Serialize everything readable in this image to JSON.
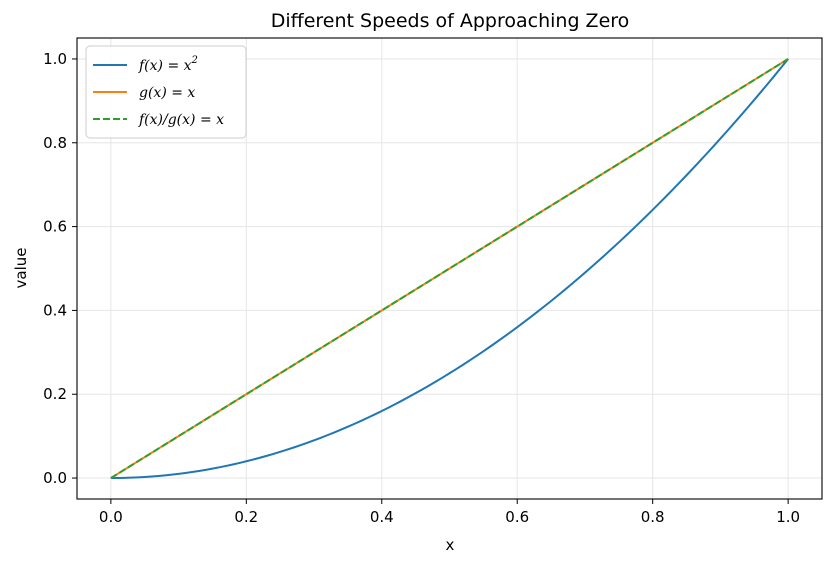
{
  "chart_data": {
    "type": "line",
    "title": "Different Speeds of Approaching Zero",
    "xlabel": "x",
    "ylabel": "value",
    "xlim": [
      -0.05,
      1.05
    ],
    "ylim": [
      -0.05,
      1.05
    ],
    "xticks": [
      0.0,
      0.2,
      0.4,
      0.6,
      0.8,
      1.0
    ],
    "xtick_labels": [
      "0.0",
      "0.2",
      "0.4",
      "0.6",
      "0.8",
      "1.0"
    ],
    "yticks": [
      0.0,
      0.2,
      0.4,
      0.6,
      0.8,
      1.0
    ],
    "ytick_labels": [
      "0.0",
      "0.2",
      "0.4",
      "0.6",
      "0.8",
      "1.0"
    ],
    "grid": true,
    "legend_position": "top-left",
    "series": [
      {
        "name": "f(x) = x²",
        "color": "#1f77b4",
        "style": "solid",
        "x": [
          0.0,
          0.1,
          0.2,
          0.3,
          0.4,
          0.5,
          0.6,
          0.7,
          0.8,
          0.9,
          1.0
        ],
        "y": [
          0.0,
          0.01,
          0.04,
          0.09,
          0.16,
          0.25,
          0.36,
          0.49,
          0.64,
          0.81,
          1.0
        ]
      },
      {
        "name": "g(x) = x",
        "color": "#ff7f0e",
        "style": "solid",
        "x": [
          0.0,
          1.0
        ],
        "y": [
          0.0,
          1.0
        ]
      },
      {
        "name": "f(x)/g(x) = x",
        "color": "#2ca02c",
        "style": "dashed",
        "x": [
          0.0,
          1.0
        ],
        "y": [
          0.0,
          1.0
        ]
      }
    ]
  }
}
